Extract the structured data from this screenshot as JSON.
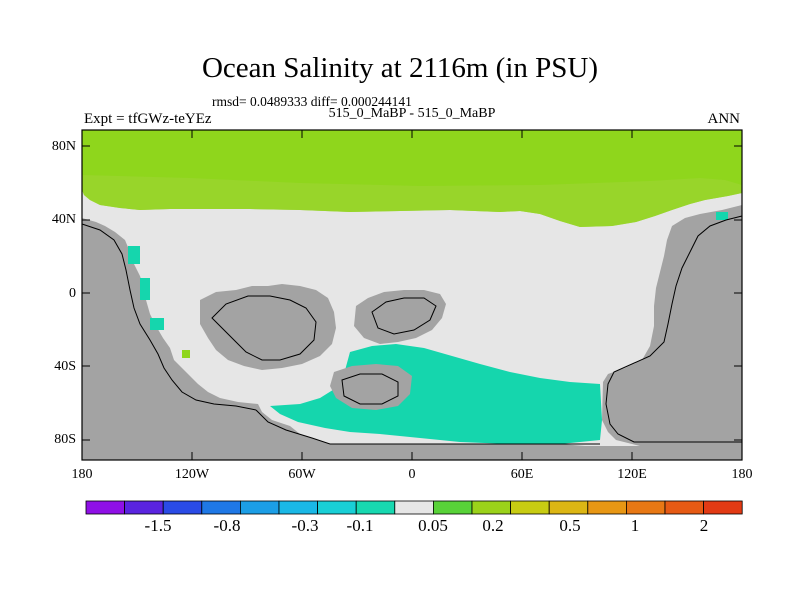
{
  "title": "Ocean Salinity at 2116m (in PSU)",
  "stats": "rmsd= 0.0489333 diff= 0.000244141",
  "comparison": "515_0_MaBP - 515_0_MaBP",
  "left_label": "Expt = tfGWz-teYEz",
  "right_label": "ANN",
  "y_ticks": [
    "80N",
    "40N",
    "0",
    "40S",
    "80S"
  ],
  "x_ticks": [
    "180",
    "120W",
    "60W",
    "0",
    "60E",
    "120E",
    "180"
  ],
  "colorbar": {
    "colors": [
      "#8f10e6",
      "#5a24e0",
      "#2a4be6",
      "#1f78e6",
      "#1c9ee6",
      "#1ab8e6",
      "#19cfd6",
      "#17d8b0",
      "#e6e6e6",
      "#58d238",
      "#9bd21a",
      "#c8cc12",
      "#dcb614",
      "#e89714",
      "#e87814",
      "#e65a14",
      "#e23a14"
    ],
    "labels": [
      "-1.5",
      "-0.8",
      "-0.3",
      "-0.1",
      "0.05",
      "0.2",
      "0.5",
      "1",
      "2"
    ]
  },
  "map_colors": {
    "land": "#a3a3a3",
    "ocean_neutral": "#e6e6e6",
    "positive": "#8fd61c",
    "negative": "#15d6ad"
  }
}
